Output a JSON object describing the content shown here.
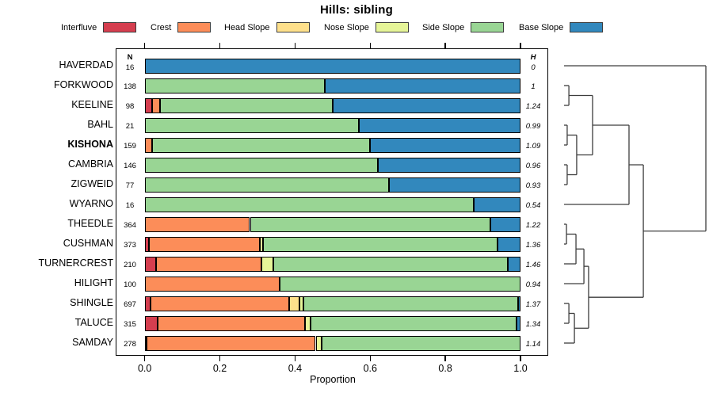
{
  "chart_data": {
    "type": "bar",
    "variant": "horizontal-stacked-proportion-with-dendrogram",
    "title": "Hills: sibling",
    "xlabel": "Proportion",
    "xlim": [
      0,
      1
    ],
    "xticks": [
      "0.0",
      "0.2",
      "0.4",
      "0.6",
      "0.8",
      "1.0"
    ],
    "n_header": "N",
    "h_header": "H",
    "legend": [
      {
        "label": "Interfluve",
        "color": "#D53E4F"
      },
      {
        "label": "Crest",
        "color": "#FC8D59"
      },
      {
        "label": "Head Slope",
        "color": "#FEE08B"
      },
      {
        "label": "Nose Slope",
        "color": "#E6F598"
      },
      {
        "label": "Side Slope",
        "color": "#99D594"
      },
      {
        "label": "Base Slope",
        "color": "#3288BD"
      }
    ],
    "series_order": [
      "Interfluve",
      "Crest",
      "Head Slope",
      "Nose Slope",
      "Side Slope",
      "Base Slope"
    ],
    "rows": [
      {
        "label": "HAVERDAD",
        "bold": false,
        "n": "16",
        "h": "0",
        "values": [
          0,
          0,
          0,
          0,
          0,
          1.0
        ]
      },
      {
        "label": "FORKWOOD",
        "bold": false,
        "n": "138",
        "h": "1",
        "values": [
          0,
          0,
          0,
          0,
          0.48,
          0.52
        ]
      },
      {
        "label": "KEELINE",
        "bold": false,
        "n": "98",
        "h": "1.24",
        "values": [
          0.02,
          0.02,
          0,
          0,
          0.46,
          0.5
        ]
      },
      {
        "label": "BAHL",
        "bold": false,
        "n": "21",
        "h": "0.99",
        "values": [
          0,
          0,
          0,
          0,
          0.57,
          0.43
        ]
      },
      {
        "label": "KISHONA",
        "bold": true,
        "n": "159",
        "h": "1.09",
        "values": [
          0,
          0.02,
          0,
          0,
          0.58,
          0.4
        ]
      },
      {
        "label": "CAMBRIA",
        "bold": false,
        "n": "146",
        "h": "0.96",
        "values": [
          0,
          0,
          0,
          0,
          0.62,
          0.38
        ]
      },
      {
        "label": "ZIGWEID",
        "bold": false,
        "n": "77",
        "h": "0.93",
        "values": [
          0,
          0,
          0,
          0,
          0.65,
          0.35
        ]
      },
      {
        "label": "WYARNO",
        "bold": false,
        "n": "16",
        "h": "0.54",
        "values": [
          0,
          0,
          0,
          0,
          0.875,
          0.125
        ]
      },
      {
        "label": "THEEDLE",
        "bold": false,
        "n": "364",
        "h": "1.22",
        "values": [
          0,
          0.28,
          0,
          0,
          0.64,
          0.08
        ]
      },
      {
        "label": "CUSHMAN",
        "bold": false,
        "n": "373",
        "h": "1.36",
        "values": [
          0.012,
          0.294,
          0,
          0.008,
          0.625,
          0.061
        ]
      },
      {
        "label": "TURNERCREST",
        "bold": false,
        "n": "210",
        "h": "1.46",
        "values": [
          0.03,
          0.28,
          0,
          0.032,
          0.624,
          0.034
        ]
      },
      {
        "label": "HILIGHT",
        "bold": false,
        "n": "100",
        "h": "0.94",
        "values": [
          0,
          0.36,
          0,
          0,
          0.64,
          0
        ]
      },
      {
        "label": "SHINGLE",
        "bold": false,
        "n": "697",
        "h": "1.37",
        "values": [
          0.016,
          0.368,
          0.027,
          0.012,
          0.57,
          0.007
        ]
      },
      {
        "label": "TALUCE",
        "bold": false,
        "n": "315",
        "h": "1.34",
        "values": [
          0.035,
          0.392,
          0,
          0.014,
          0.549,
          0.01
        ]
      },
      {
        "label": "SAMDAY",
        "bold": false,
        "n": "278",
        "h": "1.14",
        "values": [
          0.005,
          0.45,
          0,
          0.015,
          0.53,
          0
        ]
      }
    ],
    "dendrogram": {
      "note": "right-side hierarchical clustering tree; leaves are rows top-to-bottom; height normalized 0-1",
      "merges": [
        {
          "id": "m1",
          "children": [
            "L1",
            "L2"
          ],
          "height": 0.034
        },
        {
          "id": "m2",
          "children": [
            "L3",
            "L4"
          ],
          "height": 0.022
        },
        {
          "id": "m3",
          "children": [
            "L5",
            "L6"
          ],
          "height": 0.022
        },
        {
          "id": "m4",
          "children": [
            "m2",
            "m3"
          ],
          "height": 0.089
        },
        {
          "id": "m5",
          "children": [
            "m1",
            "m4"
          ],
          "height": 0.201
        },
        {
          "id": "m6",
          "children": [
            "m5",
            "L7"
          ],
          "height": 0.458
        },
        {
          "id": "m7",
          "children": [
            "L8",
            "L9"
          ],
          "height": 0.017
        },
        {
          "id": "m8",
          "children": [
            "m7",
            "L10"
          ],
          "height": 0.084
        },
        {
          "id": "m9",
          "children": [
            "m8",
            "L11"
          ],
          "height": 0.14
        },
        {
          "id": "m10",
          "children": [
            "L12",
            "L13"
          ],
          "height": 0.034
        },
        {
          "id": "m11",
          "children": [
            "m10",
            "L14"
          ],
          "height": 0.073
        },
        {
          "id": "m12",
          "children": [
            "m9",
            "m11"
          ],
          "height": 0.173
        },
        {
          "id": "m13",
          "children": [
            "m6",
            "m12"
          ],
          "height": 0.559
        },
        {
          "id": "m14",
          "children": [
            "L0",
            "m13"
          ],
          "height": 1.0
        }
      ]
    }
  }
}
